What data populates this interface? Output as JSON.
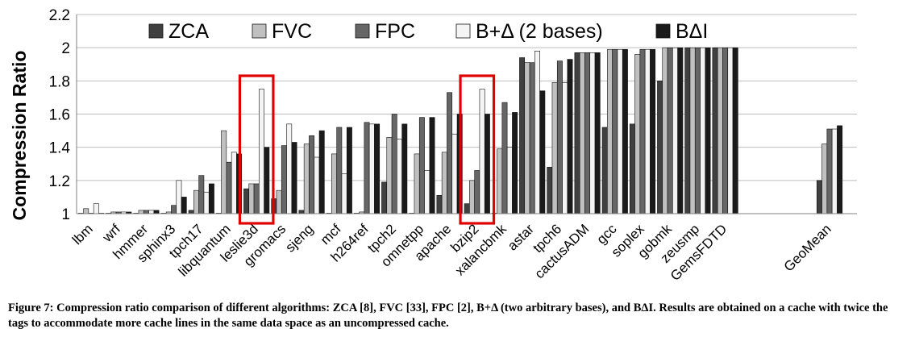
{
  "chart_data": {
    "type": "bar",
    "title": "",
    "ylabel": "Compression Ratio",
    "xlabel": "",
    "ylim": [
      1,
      2.2
    ],
    "yticks": [
      1,
      1.2,
      1.4,
      1.6,
      1.8,
      2,
      2.2
    ],
    "ytick_labels": [
      "1",
      "1.2",
      "1.4",
      "1.6",
      "1.8",
      "2",
      "2.2"
    ],
    "grid": "horizontal",
    "legend_position": "top",
    "categories": [
      "lbm",
      "wrf",
      "hmmer",
      "sphinx3",
      "tpch17",
      "libquantum",
      "leslie3d",
      "gromacs",
      "sjeng",
      "mcf",
      "h264ref",
      "tpch2",
      "omnetpp",
      "apache",
      "bzip2",
      "xalancbmk",
      "astar",
      "tpch6",
      "cactusADM",
      "gcc",
      "soplex",
      "gobmk",
      "zeusmp",
      "GemsFDTD",
      "GeoMean"
    ],
    "series": [
      {
        "name": "ZCA",
        "color": "#404040",
        "values": [
          1.0,
          1.0,
          1.0,
          1.0,
          1.02,
          1.0,
          1.15,
          1.09,
          1.02,
          1.0,
          1.0,
          1.19,
          1.0,
          1.11,
          1.06,
          1.0,
          1.94,
          1.28,
          1.97,
          1.52,
          1.54,
          1.8,
          2.0,
          2.0,
          1.2
        ]
      },
      {
        "name": "FVC",
        "color": "#c0c0c0",
        "values": [
          1.03,
          1.01,
          1.02,
          1.01,
          1.14,
          1.5,
          1.18,
          1.14,
          1.42,
          1.36,
          1.01,
          1.46,
          1.36,
          1.37,
          1.2,
          1.39,
          1.91,
          1.79,
          1.97,
          1.99,
          1.96,
          2.0,
          2.0,
          2.0,
          1.42
        ]
      },
      {
        "name": "FPC",
        "color": "#666666",
        "values": [
          1.0,
          1.01,
          1.02,
          1.05,
          1.23,
          1.31,
          1.18,
          1.41,
          1.47,
          1.52,
          1.55,
          1.6,
          1.58,
          1.73,
          1.26,
          1.67,
          1.91,
          1.92,
          1.97,
          1.99,
          1.99,
          2.0,
          2.0,
          2.0,
          1.51
        ]
      },
      {
        "name": "B+Δ (2 bases)",
        "color": "#f4f4f4",
        "values": [
          1.06,
          1.01,
          1.02,
          1.2,
          1.13,
          1.37,
          1.75,
          1.54,
          1.34,
          1.24,
          1.54,
          1.45,
          1.26,
          1.48,
          1.75,
          1.4,
          1.98,
          1.79,
          1.97,
          1.99,
          1.99,
          2.0,
          2.0,
          2.0,
          1.51
        ]
      },
      {
        "name": "BΔI",
        "color": "#1a1a1a",
        "values": [
          1.0,
          1.01,
          1.02,
          1.1,
          1.18,
          1.36,
          1.4,
          1.43,
          1.5,
          1.52,
          1.54,
          1.54,
          1.58,
          1.6,
          1.6,
          1.61,
          1.74,
          1.93,
          1.97,
          1.99,
          1.99,
          2.0,
          2.0,
          2.0,
          1.53
        ]
      }
    ],
    "highlighted_categories": [
      "leslie3d",
      "bzip2"
    ]
  },
  "caption": "Figure 7: Compression ratio comparison of different algorithms: ZCA [8], FVC [33], FPC [2], B+Δ (two arbitrary bases), and BΔI. Results are obtained on a cache with twice the tags to accommodate more cache lines in the same data space as an uncompressed cache."
}
